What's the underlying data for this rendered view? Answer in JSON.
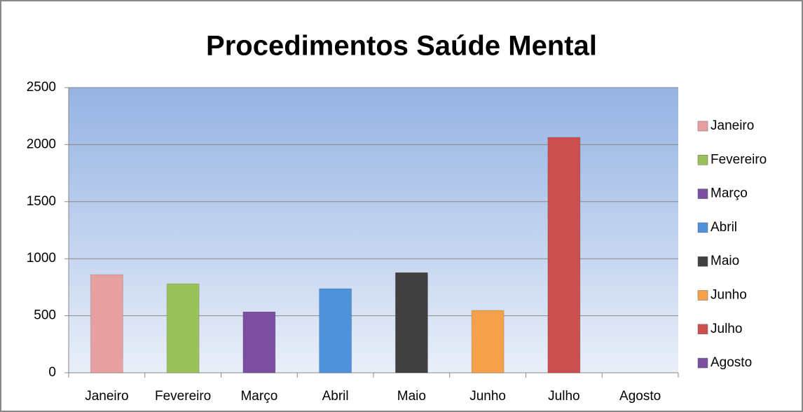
{
  "chart_data": {
    "type": "bar",
    "title": "Procedimentos Saúde Mental",
    "categories": [
      "Janeiro",
      "Fevereiro",
      "Março",
      "Abril",
      "Maio",
      "Junho",
      "Julho",
      "Agosto"
    ],
    "series": [
      {
        "name": "Janeiro",
        "color": "#e6a0a0"
      },
      {
        "name": "Fevereiro",
        "color": "#9bc25a"
      },
      {
        "name": "Março",
        "color": "#7a4fa0"
      },
      {
        "name": "Abril",
        "color": "#4f92dc"
      },
      {
        "name": "Maio",
        "color": "#404040"
      },
      {
        "name": "Junho",
        "color": "#f7a04a"
      },
      {
        "name": "Julho",
        "color": "#cc4f4f"
      },
      {
        "name": "Agosto",
        "color": "#7a4fa0"
      }
    ],
    "values": [
      860,
      780,
      534,
      737,
      878,
      547,
      2064,
      0
    ],
    "ylim": [
      0,
      2500
    ],
    "yticks": [
      0,
      500,
      1000,
      1500,
      2000,
      2500
    ],
    "grid": true,
    "legend": "right"
  }
}
